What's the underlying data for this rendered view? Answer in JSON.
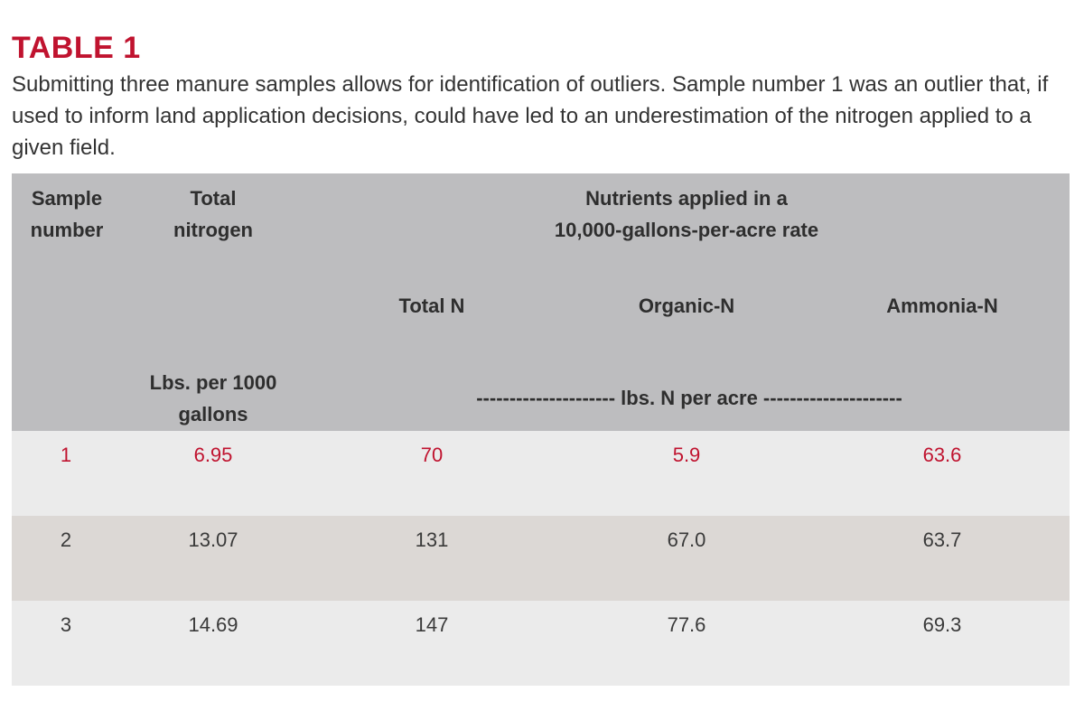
{
  "title": "TABLE 1",
  "caption": "Submitting three manure samples allows for identification of outliers. Sample number 1 was an outlier that, if used to inform land application decisions, could have led to an underestimation of the nitrogen applied to a given field.",
  "header": {
    "sample_number": [
      "Sample",
      "number"
    ],
    "total_nitrogen": [
      "Total",
      "nitrogen"
    ],
    "group": [
      "Nutrients applied in a",
      "10,000-gallons-per-acre rate"
    ],
    "total_n": "Total N",
    "organic_n": "Organic-N",
    "ammonia_n": "Ammonia-N",
    "unit_left": [
      "Lbs. per 1000",
      "gallons"
    ],
    "unit_right": "--------------------- lbs. N per acre ---------------------"
  },
  "rows": [
    {
      "sample": "1",
      "total_nitrogen": "6.95",
      "total_n": "70",
      "organic_n": "5.9",
      "ammonia_n": "63.6"
    },
    {
      "sample": "2",
      "total_nitrogen": "13.07",
      "total_n": "131",
      "organic_n": "67.0",
      "ammonia_n": "63.7"
    },
    {
      "sample": "3",
      "total_nitrogen": "14.69",
      "total_n": "147",
      "organic_n": "77.6",
      "ammonia_n": "69.3"
    }
  ],
  "colors": {
    "accent": "#c0132f",
    "header_bg": "#bdbdbf",
    "row_light": "#ebebeb",
    "row_dark": "#dcd8d5"
  }
}
